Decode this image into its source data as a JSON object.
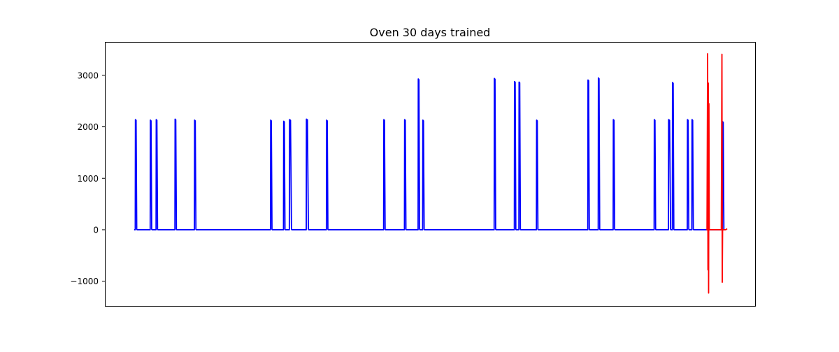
{
  "chart_data": {
    "type": "line",
    "title": "Oven 30 days trained",
    "xlabel": "",
    "ylabel": "",
    "xlim": [
      0,
      1000
    ],
    "ylim": [
      -1480,
      3650
    ],
    "yticks": [
      -1000,
      0,
      1000,
      2000,
      3000
    ],
    "ytick_labels": [
      "−1000",
      "0",
      "1000",
      "2000",
      "3000"
    ],
    "xticks_visible": false,
    "grid": false,
    "legend": "none",
    "series": [
      {
        "color": "#0000ff",
        "baseline": 0,
        "peaks": [
          {
            "x": 47,
            "y": 2140,
            "w": 2
          },
          {
            "x": 70,
            "y": 2130,
            "w": 2
          },
          {
            "x": 79,
            "y": 2140,
            "w": 2
          },
          {
            "x": 108,
            "y": 2150,
            "w": 2
          },
          {
            "x": 138,
            "y": 2130,
            "w": 2
          },
          {
            "x": 255,
            "y": 2130,
            "w": 2
          },
          {
            "x": 275,
            "y": 2110,
            "w": 2
          },
          {
            "x": 284,
            "y": 2140,
            "w": 3
          },
          {
            "x": 310,
            "y": 2150,
            "w": 3
          },
          {
            "x": 341,
            "y": 2130,
            "w": 2
          },
          {
            "x": 429,
            "y": 2140,
            "w": 2
          },
          {
            "x": 461,
            "y": 2140,
            "w": 2
          },
          {
            "x": 482,
            "y": 2930,
            "w": 2
          },
          {
            "x": 489,
            "y": 2130,
            "w": 2
          },
          {
            "x": 599,
            "y": 2940,
            "w": 2
          },
          {
            "x": 630,
            "y": 2880,
            "w": 2
          },
          {
            "x": 637,
            "y": 2870,
            "w": 2
          },
          {
            "x": 664,
            "y": 2130,
            "w": 2
          },
          {
            "x": 743,
            "y": 2910,
            "w": 2
          },
          {
            "x": 759,
            "y": 2950,
            "w": 2
          },
          {
            "x": 782,
            "y": 2140,
            "w": 2
          },
          {
            "x": 845,
            "y": 2140,
            "w": 2
          },
          {
            "x": 867,
            "y": 2140,
            "w": 3
          },
          {
            "x": 873,
            "y": 2860,
            "w": 2
          },
          {
            "x": 896,
            "y": 2140,
            "w": 2
          },
          {
            "x": 903,
            "y": 2140,
            "w": 2
          },
          {
            "x": 950,
            "y": 2100,
            "w": 2
          }
        ]
      },
      {
        "color": "#ff0000",
        "points": [
          [
            925,
            0
          ],
          [
            926,
            0
          ],
          [
            927,
            3420
          ],
          [
            927.5,
            -780
          ],
          [
            928,
            2850
          ],
          [
            928.5,
            -1230
          ],
          [
            929,
            2450
          ],
          [
            929.5,
            20
          ],
          [
            930,
            0
          ],
          [
            935,
            0
          ],
          [
            940,
            0
          ],
          [
            948,
            0
          ],
          [
            949,
            3410
          ],
          [
            949.5,
            -1020
          ],
          [
            950,
            0
          ],
          [
            955,
            0
          ],
          [
            957,
            20
          ]
        ]
      }
    ]
  }
}
